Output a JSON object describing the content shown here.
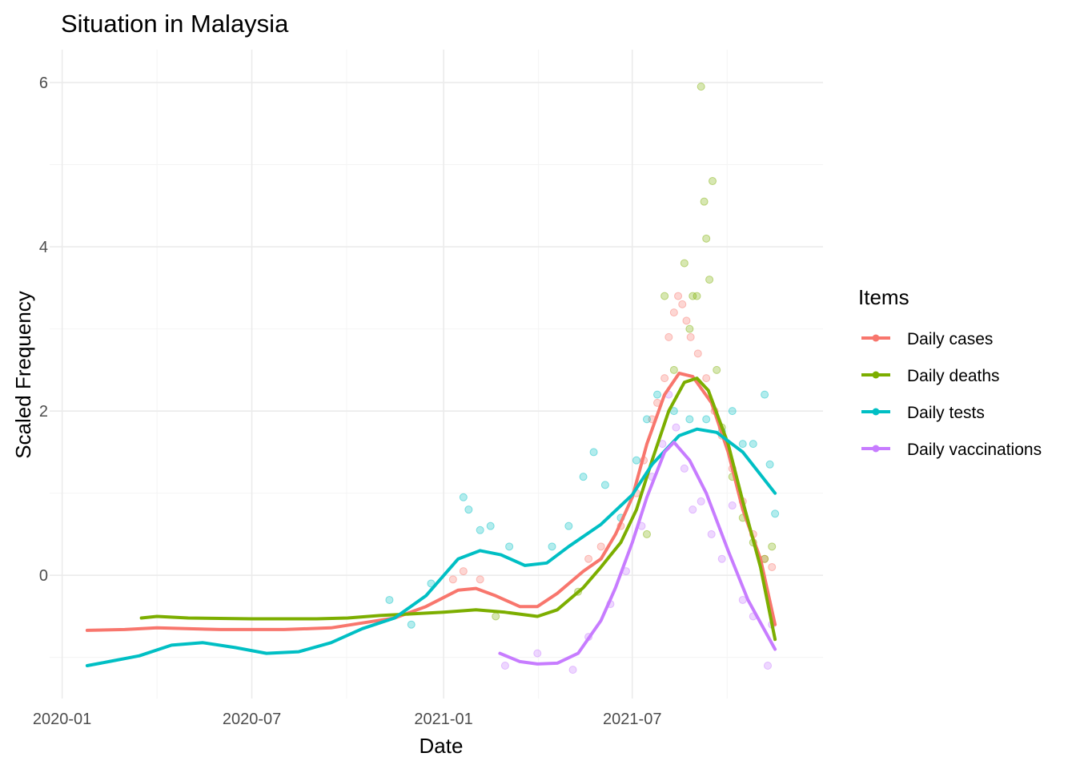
{
  "chart_data": {
    "type": "line",
    "title": "Situation in Malaysia",
    "xlabel": "Date",
    "ylabel": "Scaled Frequency",
    "x_tick_labels": [
      "2020-01",
      "2020-07",
      "2021-01",
      "2021-07"
    ],
    "x_tick_dates": [
      "2020-01-01",
      "2020-07-01",
      "2021-01-01",
      "2021-07-01"
    ],
    "xlim": [
      "2019-12-20",
      "2021-12-31"
    ],
    "y_tick_labels": [
      "0",
      "2",
      "4",
      "6"
    ],
    "y_tick_values": [
      0,
      2,
      4,
      6
    ],
    "ylim": [
      -1.5,
      6.4
    ],
    "grid": true,
    "legend": {
      "title": "Items",
      "position": "right",
      "entries": [
        "Daily cases",
        "Daily deaths",
        "Daily tests",
        "Daily vaccinations"
      ]
    },
    "series": [
      {
        "name": "Daily cases",
        "color": "#F8766D",
        "smooth": [
          [
            "2020-01-25",
            -0.67
          ],
          [
            "2020-03-01",
            -0.66
          ],
          [
            "2020-04-01",
            -0.64
          ],
          [
            "2020-06-01",
            -0.66
          ],
          [
            "2020-08-01",
            -0.66
          ],
          [
            "2020-09-15",
            -0.64
          ],
          [
            "2020-10-15",
            -0.58
          ],
          [
            "2020-11-15",
            -0.52
          ],
          [
            "2020-12-15",
            -0.38
          ],
          [
            "2021-01-15",
            -0.18
          ],
          [
            "2021-02-01",
            -0.16
          ],
          [
            "2021-02-20",
            -0.25
          ],
          [
            "2021-03-15",
            -0.38
          ],
          [
            "2021-04-01",
            -0.38
          ],
          [
            "2021-04-20",
            -0.22
          ],
          [
            "2021-05-15",
            0.05
          ],
          [
            "2021-06-01",
            0.2
          ],
          [
            "2021-06-15",
            0.5
          ],
          [
            "2021-07-01",
            0.95
          ],
          [
            "2021-07-15",
            1.6
          ],
          [
            "2021-08-01",
            2.2
          ],
          [
            "2021-08-15",
            2.46
          ],
          [
            "2021-08-28",
            2.42
          ],
          [
            "2021-09-15",
            2.1
          ],
          [
            "2021-10-01",
            1.5
          ],
          [
            "2021-10-15",
            0.8
          ],
          [
            "2021-11-01",
            0.2
          ],
          [
            "2021-11-15",
            -0.6
          ]
        ],
        "points": [
          [
            "2021-06-20",
            0.6
          ],
          [
            "2021-07-05",
            1.0
          ],
          [
            "2021-07-12",
            1.4
          ],
          [
            "2021-07-20",
            1.9
          ],
          [
            "2021-07-25",
            2.1
          ],
          [
            "2021-08-01",
            2.4
          ],
          [
            "2021-08-05",
            2.9
          ],
          [
            "2021-08-10",
            3.2
          ],
          [
            "2021-08-14",
            3.4
          ],
          [
            "2021-08-18",
            3.3
          ],
          [
            "2021-08-22",
            3.1
          ],
          [
            "2021-08-26",
            2.9
          ],
          [
            "2021-09-02",
            2.7
          ],
          [
            "2021-09-10",
            2.4
          ],
          [
            "2021-09-18",
            2.0
          ],
          [
            "2021-09-25",
            1.7
          ],
          [
            "2021-10-05",
            1.3
          ],
          [
            "2021-10-15",
            0.9
          ],
          [
            "2021-10-25",
            0.5
          ],
          [
            "2021-11-05",
            0.2
          ],
          [
            "2021-11-12",
            0.1
          ],
          [
            "2021-01-10",
            -0.05
          ],
          [
            "2021-01-20",
            0.05
          ],
          [
            "2021-02-05",
            -0.05
          ],
          [
            "2021-05-20",
            0.2
          ],
          [
            "2021-06-01",
            0.35
          ]
        ]
      },
      {
        "name": "Daily deaths",
        "color": "#7CAE00",
        "smooth": [
          [
            "2020-03-17",
            -0.52
          ],
          [
            "2020-04-01",
            -0.5
          ],
          [
            "2020-05-01",
            -0.52
          ],
          [
            "2020-07-01",
            -0.53
          ],
          [
            "2020-09-01",
            -0.53
          ],
          [
            "2020-10-01",
            -0.52
          ],
          [
            "2020-11-01",
            -0.49
          ],
          [
            "2020-12-01",
            -0.47
          ],
          [
            "2021-01-01",
            -0.45
          ],
          [
            "2021-02-01",
            -0.42
          ],
          [
            "2021-03-01",
            -0.45
          ],
          [
            "2021-04-01",
            -0.5
          ],
          [
            "2021-04-20",
            -0.42
          ],
          [
            "2021-05-15",
            -0.15
          ],
          [
            "2021-06-01",
            0.1
          ],
          [
            "2021-06-20",
            0.4
          ],
          [
            "2021-07-05",
            0.8
          ],
          [
            "2021-07-20",
            1.4
          ],
          [
            "2021-08-05",
            2.0
          ],
          [
            "2021-08-20",
            2.35
          ],
          [
            "2021-09-01",
            2.4
          ],
          [
            "2021-09-12",
            2.25
          ],
          [
            "2021-10-01",
            1.6
          ],
          [
            "2021-10-15",
            0.9
          ],
          [
            "2021-11-01",
            0.1
          ],
          [
            "2021-11-15",
            -0.78
          ]
        ],
        "points": [
          [
            "2021-07-15",
            0.5
          ],
          [
            "2021-08-01",
            3.4
          ],
          [
            "2021-08-10",
            2.5
          ],
          [
            "2021-08-20",
            3.8
          ],
          [
            "2021-08-25",
            3.0
          ],
          [
            "2021-08-28",
            3.4
          ],
          [
            "2021-09-01",
            3.4
          ],
          [
            "2021-09-05",
            5.95
          ],
          [
            "2021-09-08",
            4.55
          ],
          [
            "2021-09-10",
            4.1
          ],
          [
            "2021-09-13",
            3.6
          ],
          [
            "2021-09-16",
            4.8
          ],
          [
            "2021-09-20",
            2.5
          ],
          [
            "2021-09-25",
            1.8
          ],
          [
            "2021-10-05",
            1.2
          ],
          [
            "2021-10-15",
            0.7
          ],
          [
            "2021-10-25",
            0.4
          ],
          [
            "2021-11-05",
            0.2
          ],
          [
            "2021-11-12",
            0.35
          ],
          [
            "2021-02-20",
            -0.5
          ],
          [
            "2021-05-10",
            -0.2
          ]
        ]
      },
      {
        "name": "Daily tests",
        "color": "#00BFC4",
        "smooth": [
          [
            "2020-01-25",
            -1.1
          ],
          [
            "2020-02-15",
            -1.05
          ],
          [
            "2020-03-15",
            -0.98
          ],
          [
            "2020-04-15",
            -0.85
          ],
          [
            "2020-05-15",
            -0.82
          ],
          [
            "2020-06-15",
            -0.88
          ],
          [
            "2020-07-15",
            -0.95
          ],
          [
            "2020-08-15",
            -0.93
          ],
          [
            "2020-09-15",
            -0.82
          ],
          [
            "2020-10-15",
            -0.65
          ],
          [
            "2020-11-15",
            -0.52
          ],
          [
            "2020-12-15",
            -0.25
          ],
          [
            "2021-01-15",
            0.2
          ],
          [
            "2021-02-05",
            0.3
          ],
          [
            "2021-02-25",
            0.25
          ],
          [
            "2021-03-20",
            0.12
          ],
          [
            "2021-04-10",
            0.15
          ],
          [
            "2021-05-01",
            0.35
          ],
          [
            "2021-06-01",
            0.62
          ],
          [
            "2021-07-01",
            0.98
          ],
          [
            "2021-07-20",
            1.35
          ],
          [
            "2021-08-15",
            1.7
          ],
          [
            "2021-09-01",
            1.78
          ],
          [
            "2021-09-20",
            1.74
          ],
          [
            "2021-10-15",
            1.5
          ],
          [
            "2021-11-15",
            1.0
          ]
        ],
        "points": [
          [
            "2021-01-20",
            0.95
          ],
          [
            "2021-01-25",
            0.8
          ],
          [
            "2021-02-05",
            0.55
          ],
          [
            "2021-02-15",
            0.6
          ],
          [
            "2021-03-05",
            0.35
          ],
          [
            "2021-04-15",
            0.35
          ],
          [
            "2021-05-01",
            0.6
          ],
          [
            "2021-05-15",
            1.2
          ],
          [
            "2021-05-25",
            1.5
          ],
          [
            "2021-06-05",
            1.1
          ],
          [
            "2021-06-20",
            0.7
          ],
          [
            "2021-07-05",
            1.4
          ],
          [
            "2021-07-15",
            1.9
          ],
          [
            "2021-07-25",
            2.2
          ],
          [
            "2021-08-10",
            2.0
          ],
          [
            "2021-08-25",
            1.9
          ],
          [
            "2021-09-10",
            1.9
          ],
          [
            "2021-09-25",
            1.75
          ],
          [
            "2021-10-05",
            2.0
          ],
          [
            "2021-10-15",
            1.6
          ],
          [
            "2021-10-25",
            1.6
          ],
          [
            "2021-11-05",
            2.2
          ],
          [
            "2021-11-10",
            1.35
          ],
          [
            "2021-11-15",
            0.75
          ],
          [
            "2020-11-10",
            -0.3
          ],
          [
            "2020-12-01",
            -0.6
          ],
          [
            "2020-12-20",
            -0.1
          ]
        ]
      },
      {
        "name": "Daily vaccinations",
        "color": "#C77CFF",
        "smooth": [
          [
            "2021-02-24",
            -0.95
          ],
          [
            "2021-03-15",
            -1.05
          ],
          [
            "2021-04-01",
            -1.08
          ],
          [
            "2021-04-20",
            -1.07
          ],
          [
            "2021-05-10",
            -0.95
          ],
          [
            "2021-06-01",
            -0.55
          ],
          [
            "2021-06-15",
            -0.15
          ],
          [
            "2021-07-01",
            0.4
          ],
          [
            "2021-07-15",
            0.95
          ],
          [
            "2021-08-01",
            1.5
          ],
          [
            "2021-08-10",
            1.62
          ],
          [
            "2021-08-25",
            1.4
          ],
          [
            "2021-09-10",
            1.0
          ],
          [
            "2021-10-01",
            0.3
          ],
          [
            "2021-10-20",
            -0.3
          ],
          [
            "2021-11-15",
            -0.9
          ]
        ],
        "points": [
          [
            "2021-03-01",
            -1.1
          ],
          [
            "2021-04-01",
            -0.95
          ],
          [
            "2021-05-05",
            -1.15
          ],
          [
            "2021-05-20",
            -0.75
          ],
          [
            "2021-06-10",
            -0.35
          ],
          [
            "2021-06-25",
            0.05
          ],
          [
            "2021-07-10",
            0.6
          ],
          [
            "2021-07-20",
            1.2
          ],
          [
            "2021-07-30",
            1.6
          ],
          [
            "2021-08-05",
            2.2
          ],
          [
            "2021-08-12",
            1.8
          ],
          [
            "2021-08-20",
            1.3
          ],
          [
            "2021-08-28",
            0.8
          ],
          [
            "2021-09-05",
            0.9
          ],
          [
            "2021-09-15",
            0.5
          ],
          [
            "2021-09-25",
            0.2
          ],
          [
            "2021-10-05",
            0.85
          ],
          [
            "2021-10-15",
            -0.3
          ],
          [
            "2021-10-25",
            -0.5
          ],
          [
            "2021-11-08",
            -1.1
          ],
          [
            "2021-11-12",
            -0.6
          ]
        ]
      }
    ]
  }
}
